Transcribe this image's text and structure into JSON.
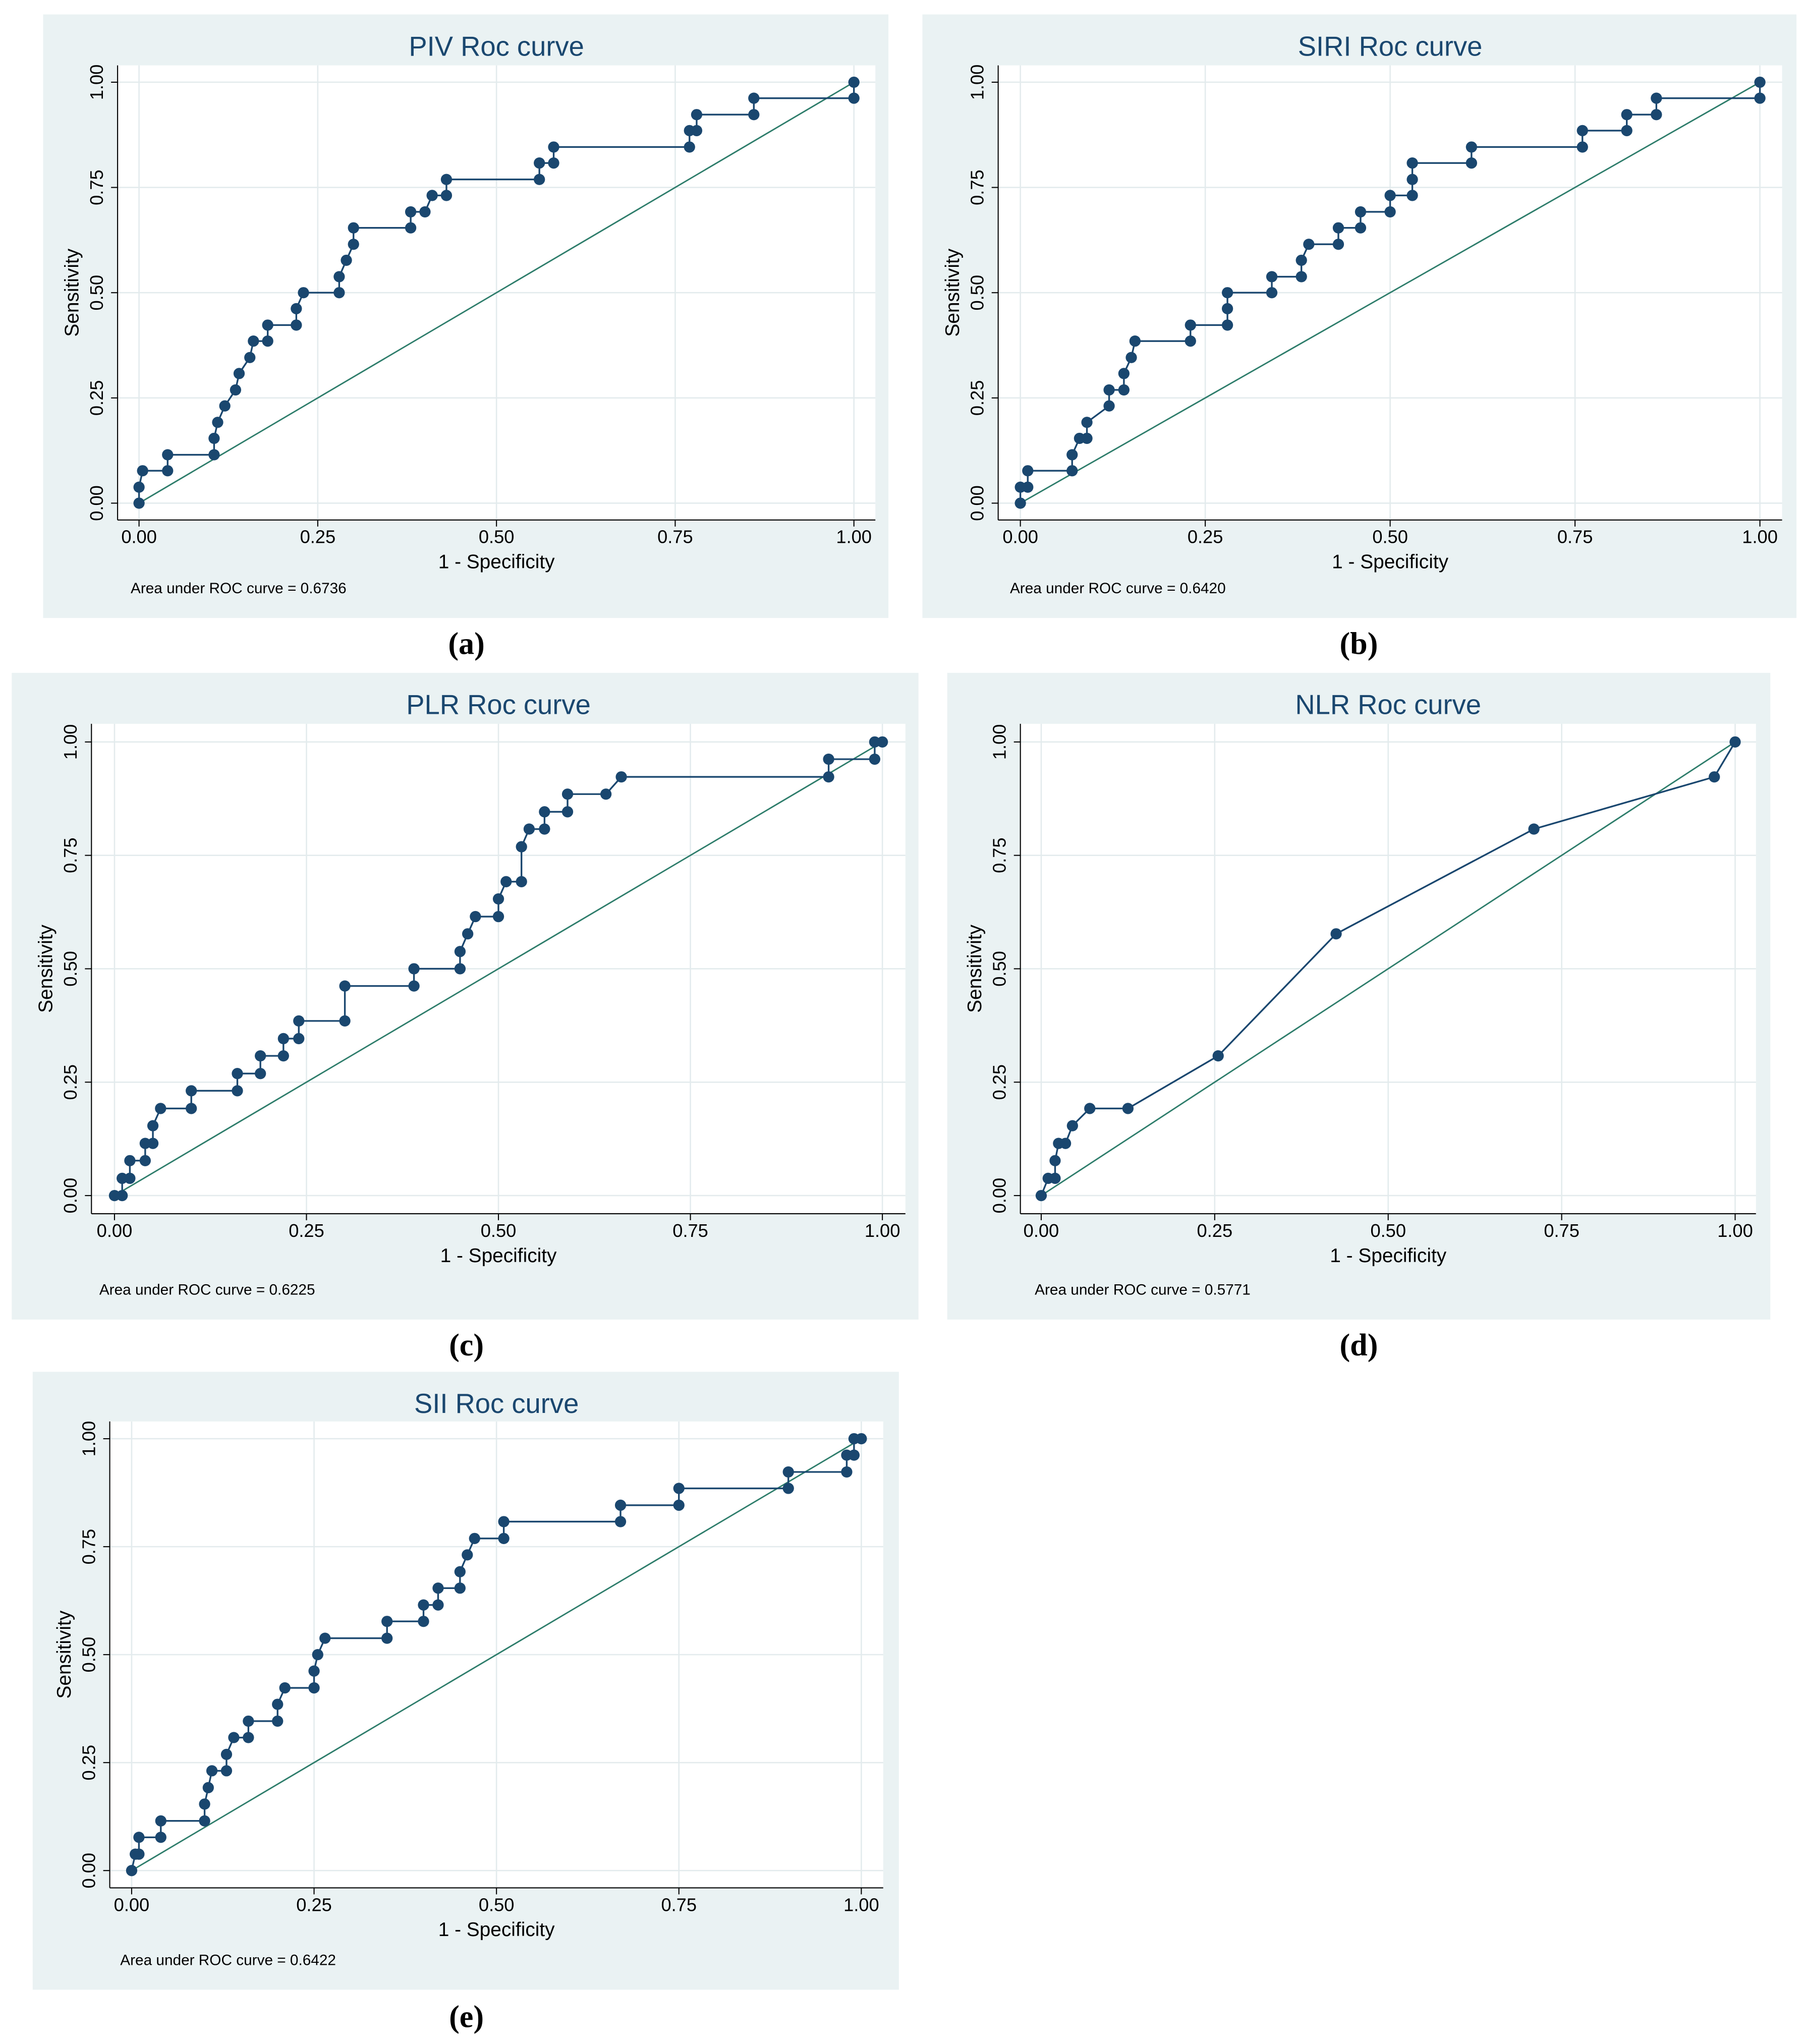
{
  "chart_data": [
    {
      "type": "line",
      "title": "PIV Roc curve",
      "x_label": "1 - Specificity",
      "y_label": "Sensitivity",
      "annotation": "Area under ROC curve = 0.6736",
      "panel_label": "(a)",
      "color": "#1a476f",
      "reference_color": "#2e7d6b",
      "grid": true,
      "xlim": [
        -0.03,
        1.03
      ],
      "ylim": [
        -0.04,
        1.04
      ],
      "xticks": [
        {
          "value": 0,
          "label": "0.00"
        },
        {
          "value": 0.25,
          "label": "0.25"
        },
        {
          "value": 0.5,
          "label": "0.50"
        },
        {
          "value": 0.75,
          "label": "0.75"
        },
        {
          "value": 1,
          "label": "1.00"
        }
      ],
      "yticks": [
        {
          "value": 0,
          "label": "0.00"
        },
        {
          "value": 0.25,
          "label": "0.25"
        },
        {
          "value": 0.5,
          "label": "0.50"
        },
        {
          "value": 0.75,
          "label": "0.75"
        },
        {
          "value": 1,
          "label": "1.00"
        }
      ],
      "x": [
        0,
        0,
        0.005,
        0.04,
        0.04,
        0.105,
        0.105,
        0.11,
        0.12,
        0.135,
        0.14,
        0.155,
        0.16,
        0.18,
        0.18,
        0.22,
        0.22,
        0.23,
        0.28,
        0.28,
        0.29,
        0.3,
        0.3,
        0.38,
        0.38,
        0.4,
        0.41,
        0.43,
        0.43,
        0.56,
        0.56,
        0.58,
        0.58,
        0.77,
        0.77,
        0.78,
        0.78,
        0.86,
        0.86,
        1,
        1
      ],
      "values": [
        0,
        0.038,
        0.077,
        0.077,
        0.115,
        0.115,
        0.154,
        0.192,
        0.231,
        0.269,
        0.308,
        0.346,
        0.385,
        0.385,
        0.423,
        0.423,
        0.462,
        0.5,
        0.5,
        0.538,
        0.577,
        0.615,
        0.654,
        0.654,
        0.692,
        0.692,
        0.731,
        0.731,
        0.769,
        0.769,
        0.808,
        0.808,
        0.846,
        0.846,
        0.885,
        0.885,
        0.923,
        0.923,
        0.962,
        0.962,
        1
      ]
    },
    {
      "type": "line",
      "title": "SIRI Roc curve",
      "x_label": "1 - Specificity",
      "y_label": "Sensitivity",
      "annotation": "Area under ROC curve = 0.6420",
      "panel_label": "(b)",
      "color": "#1a476f",
      "reference_color": "#2e7d6b",
      "grid": true,
      "xlim": [
        -0.03,
        1.03
      ],
      "ylim": [
        -0.04,
        1.04
      ],
      "xticks": [
        {
          "value": 0,
          "label": "0.00"
        },
        {
          "value": 0.25,
          "label": "0.25"
        },
        {
          "value": 0.5,
          "label": "0.50"
        },
        {
          "value": 0.75,
          "label": "0.75"
        },
        {
          "value": 1,
          "label": "1.00"
        }
      ],
      "yticks": [
        {
          "value": 0,
          "label": "0.00"
        },
        {
          "value": 0.25,
          "label": "0.25"
        },
        {
          "value": 0.5,
          "label": "0.50"
        },
        {
          "value": 0.75,
          "label": "0.75"
        },
        {
          "value": 1,
          "label": "1.00"
        }
      ],
      "x": [
        0,
        0,
        0.01,
        0.01,
        0.07,
        0.07,
        0.08,
        0.09,
        0.09,
        0.12,
        0.12,
        0.14,
        0.14,
        0.15,
        0.155,
        0.23,
        0.23,
        0.28,
        0.28,
        0.28,
        0.34,
        0.34,
        0.38,
        0.38,
        0.39,
        0.43,
        0.43,
        0.46,
        0.46,
        0.5,
        0.5,
        0.53,
        0.53,
        0.53,
        0.61,
        0.61,
        0.76,
        0.76,
        0.82,
        0.82,
        0.86,
        0.86,
        1,
        1
      ],
      "values": [
        0,
        0.038,
        0.038,
        0.077,
        0.077,
        0.115,
        0.154,
        0.154,
        0.192,
        0.231,
        0.269,
        0.269,
        0.308,
        0.346,
        0.385,
        0.385,
        0.423,
        0.423,
        0.462,
        0.5,
        0.5,
        0.538,
        0.538,
        0.577,
        0.615,
        0.615,
        0.654,
        0.654,
        0.692,
        0.692,
        0.731,
        0.731,
        0.769,
        0.808,
        0.808,
        0.846,
        0.846,
        0.885,
        0.885,
        0.923,
        0.923,
        0.962,
        0.962,
        1
      ]
    },
    {
      "type": "line",
      "title": "PLR Roc curve",
      "x_label": "1 - Specificity",
      "y_label": "Sensitivity",
      "annotation": "Area under ROC curve = 0.6225",
      "panel_label": "(c)",
      "color": "#1a476f",
      "reference_color": "#2e7d6b",
      "grid": true,
      "xlim": [
        -0.03,
        1.03
      ],
      "ylim": [
        -0.04,
        1.04
      ],
      "xticks": [
        {
          "value": 0,
          "label": "0.00"
        },
        {
          "value": 0.25,
          "label": "0.25"
        },
        {
          "value": 0.5,
          "label": "0.50"
        },
        {
          "value": 0.75,
          "label": "0.75"
        },
        {
          "value": 1,
          "label": "1.00"
        }
      ],
      "yticks": [
        {
          "value": 0,
          "label": "0.00"
        },
        {
          "value": 0.25,
          "label": "0.25"
        },
        {
          "value": 0.5,
          "label": "0.50"
        },
        {
          "value": 0.75,
          "label": "0.75"
        },
        {
          "value": 1,
          "label": "1.00"
        }
      ],
      "x": [
        0,
        0.01,
        0.01,
        0.02,
        0.02,
        0.04,
        0.04,
        0.05,
        0.05,
        0.06,
        0.1,
        0.1,
        0.16,
        0.16,
        0.19,
        0.19,
        0.22,
        0.22,
        0.24,
        0.24,
        0.3,
        0.3,
        0.39,
        0.39,
        0.45,
        0.45,
        0.46,
        0.47,
        0.5,
        0.5,
        0.51,
        0.53,
        0.53,
        0.54,
        0.56,
        0.56,
        0.59,
        0.59,
        0.64,
        0.66,
        0.93,
        0.93,
        0.99,
        0.99,
        1
      ],
      "values": [
        0,
        0,
        0.038,
        0.038,
        0.077,
        0.077,
        0.115,
        0.115,
        0.154,
        0.192,
        0.192,
        0.231,
        0.231,
        0.269,
        0.269,
        0.308,
        0.308,
        0.346,
        0.346,
        0.385,
        0.385,
        0.462,
        0.462,
        0.5,
        0.5,
        0.538,
        0.577,
        0.615,
        0.615,
        0.654,
        0.692,
        0.692,
        0.769,
        0.808,
        0.808,
        0.846,
        0.846,
        0.885,
        0.885,
        0.923,
        0.923,
        0.962,
        0.962,
        1,
        1
      ]
    },
    {
      "type": "line",
      "title": "NLR Roc curve",
      "x_label": "1 - Specificity",
      "y_label": "Sensitivity",
      "annotation": "Area under ROC curve = 0.5771",
      "panel_label": "(d)",
      "color": "#1a476f",
      "reference_color": "#2e7d6b",
      "grid": true,
      "xlim": [
        -0.03,
        1.03
      ],
      "ylim": [
        -0.04,
        1.04
      ],
      "xticks": [
        {
          "value": 0,
          "label": "0.00"
        },
        {
          "value": 0.25,
          "label": "0.25"
        },
        {
          "value": 0.5,
          "label": "0.50"
        },
        {
          "value": 0.75,
          "label": "0.75"
        },
        {
          "value": 1,
          "label": "1.00"
        }
      ],
      "yticks": [
        {
          "value": 0,
          "label": "0.00"
        },
        {
          "value": 0.25,
          "label": "0.25"
        },
        {
          "value": 0.5,
          "label": "0.50"
        },
        {
          "value": 0.75,
          "label": "0.75"
        },
        {
          "value": 1,
          "label": "1.00"
        }
      ],
      "x": [
        0,
        0.01,
        0.02,
        0.02,
        0.025,
        0.035,
        0.045,
        0.07,
        0.125,
        0.255,
        0.425,
        0.71,
        0.97,
        1
      ],
      "values": [
        0,
        0.038,
        0.038,
        0.077,
        0.115,
        0.115,
        0.154,
        0.192,
        0.192,
        0.308,
        0.577,
        0.808,
        0.923,
        1
      ]
    },
    {
      "type": "line",
      "title": "SII Roc curve",
      "x_label": "1 - Specificity",
      "y_label": "Sensitivity",
      "annotation": "Area under ROC curve = 0.6422",
      "panel_label": "(e)",
      "color": "#1a476f",
      "reference_color": "#2e7d6b",
      "grid": true,
      "xlim": [
        -0.03,
        1.03
      ],
      "ylim": [
        -0.04,
        1.04
      ],
      "xticks": [
        {
          "value": 0,
          "label": "0.00"
        },
        {
          "value": 0.25,
          "label": "0.25"
        },
        {
          "value": 0.5,
          "label": "0.50"
        },
        {
          "value": 0.75,
          "label": "0.75"
        },
        {
          "value": 1,
          "label": "1.00"
        }
      ],
      "yticks": [
        {
          "value": 0,
          "label": "0.00"
        },
        {
          "value": 0.25,
          "label": "0.25"
        },
        {
          "value": 0.5,
          "label": "0.50"
        },
        {
          "value": 0.75,
          "label": "0.75"
        },
        {
          "value": 1,
          "label": "1.00"
        }
      ],
      "x": [
        0,
        0.005,
        0.01,
        0.01,
        0.04,
        0.04,
        0.1,
        0.1,
        0.105,
        0.11,
        0.13,
        0.13,
        0.14,
        0.16,
        0.16,
        0.2,
        0.2,
        0.21,
        0.25,
        0.25,
        0.255,
        0.265,
        0.35,
        0.35,
        0.4,
        0.4,
        0.42,
        0.42,
        0.45,
        0.45,
        0.46,
        0.47,
        0.51,
        0.51,
        0.67,
        0.67,
        0.75,
        0.75,
        0.9,
        0.9,
        0.98,
        0.98,
        0.99,
        0.99,
        1
      ],
      "values": [
        0,
        0.038,
        0.038,
        0.077,
        0.077,
        0.115,
        0.115,
        0.154,
        0.192,
        0.231,
        0.231,
        0.269,
        0.308,
        0.308,
        0.346,
        0.346,
        0.385,
        0.423,
        0.423,
        0.462,
        0.5,
        0.538,
        0.538,
        0.577,
        0.577,
        0.615,
        0.615,
        0.654,
        0.654,
        0.692,
        0.731,
        0.769,
        0.769,
        0.808,
        0.808,
        0.846,
        0.846,
        0.885,
        0.885,
        0.923,
        0.923,
        0.962,
        0.962,
        1,
        1
      ]
    }
  ]
}
